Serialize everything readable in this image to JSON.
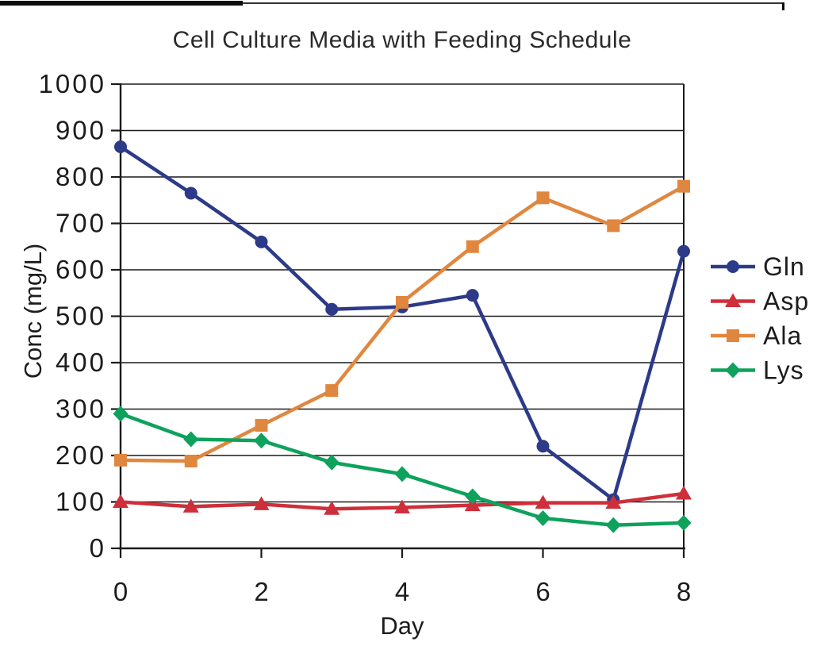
{
  "chart_data": {
    "type": "line",
    "title": "Cell Culture Media with Feeding Schedule",
    "xlabel": "Day",
    "ylabel": "Conc (mg/L)",
    "x": [
      0,
      1,
      2,
      3,
      4,
      5,
      6,
      7,
      8
    ],
    "xlim": [
      0,
      8
    ],
    "ylim": [
      0,
      1000
    ],
    "x_ticks": [
      0,
      2,
      4,
      6,
      8
    ],
    "y_ticks": [
      0,
      100,
      200,
      300,
      400,
      500,
      600,
      700,
      800,
      900,
      1000
    ],
    "grid": "horizontal",
    "grid_color": "#1a1a1a",
    "axis_color": "#1a1a1a",
    "legend_position": "right",
    "series": [
      {
        "name": "Gln",
        "marker": "circle",
        "color": "#2d3a88",
        "values": [
          865,
          765,
          660,
          515,
          520,
          545,
          220,
          105,
          640
        ]
      },
      {
        "name": "Asp",
        "marker": "triangle",
        "color": "#ce2f3a",
        "values": [
          100,
          90,
          95,
          85,
          88,
          93,
          98,
          98,
          118
        ]
      },
      {
        "name": "Ala",
        "marker": "square",
        "color": "#e0873f",
        "values": [
          190,
          188,
          265,
          340,
          530,
          650,
          755,
          695,
          780
        ]
      },
      {
        "name": "Lys",
        "marker": "diamond",
        "color": "#0ea25c",
        "values": [
          290,
          235,
          232,
          185,
          160,
          112,
          65,
          50,
          55
        ]
      }
    ]
  }
}
